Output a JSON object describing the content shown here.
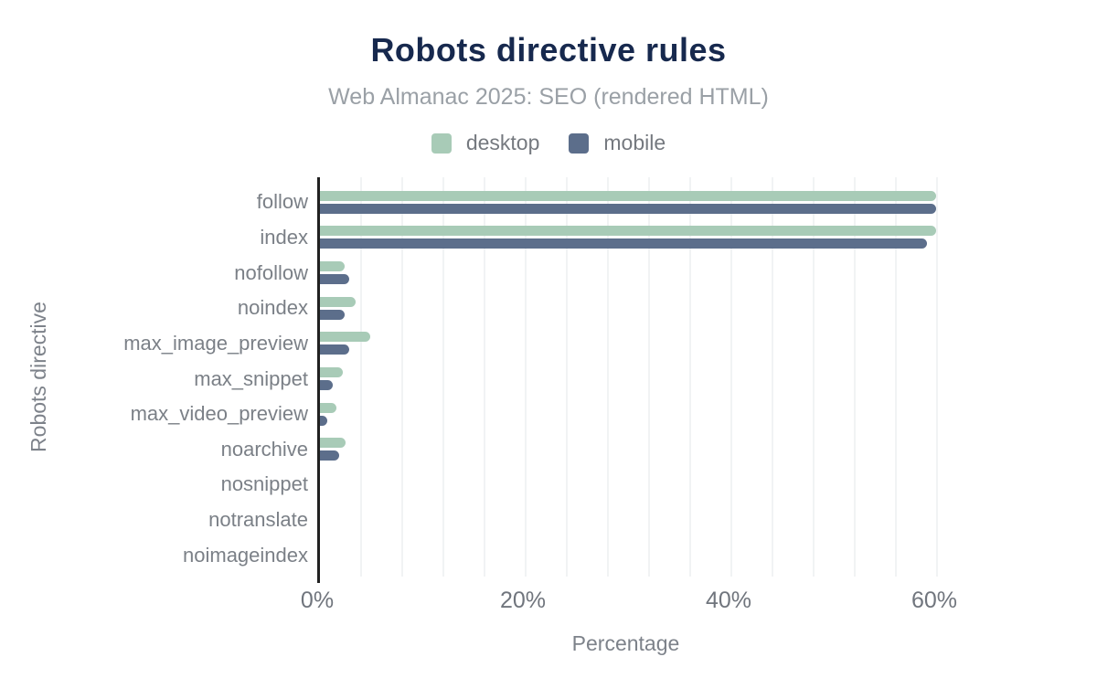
{
  "chart_data": {
    "type": "bar",
    "orientation": "horizontal",
    "title": "Robots directive rules",
    "subtitle": "Web Almanac 2025: SEO (rendered HTML)",
    "xlabel": "Percentage",
    "ylabel": "Robots directive",
    "categories": [
      "follow",
      "index",
      "nofollow",
      "noindex",
      "max_image_preview",
      "max_snippet",
      "max_video_preview",
      "noarchive",
      "nosnippet",
      "notranslate",
      "noimageindex"
    ],
    "series": [
      {
        "name": "desktop",
        "color": "#a8cbb7",
        "values": [
          59.9,
          59.9,
          2.4,
          3.5,
          4.9,
          2.2,
          1.6,
          2.5,
          0,
          0,
          0
        ]
      },
      {
        "name": "mobile",
        "color": "#5c6e8b",
        "values": [
          59.9,
          59.0,
          2.8,
          2.4,
          2.8,
          1.2,
          0.7,
          1.9,
          0,
          0,
          0
        ]
      }
    ],
    "xlim": [
      0,
      60
    ],
    "x_ticks": [
      {
        "value": 0,
        "label": "0%"
      },
      {
        "value": 20,
        "label": "20%"
      },
      {
        "value": 40,
        "label": "40%"
      },
      {
        "value": 60,
        "label": "60%"
      }
    ],
    "gridline_step": 4,
    "grid": "vertical-faint",
    "legend_position": "top",
    "style": {
      "title_color": "#17294e",
      "subtitle_color": "#9aa0a6",
      "axis_line_color": "#212121",
      "gridline_color": "#f1f3f4",
      "label_color": "#7b8087"
    }
  }
}
